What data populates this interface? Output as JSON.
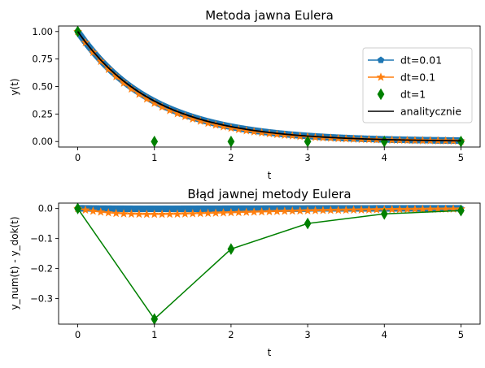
{
  "chart_data": [
    {
      "type": "line",
      "title": "Metoda jawna Eulera",
      "xlabel": "t",
      "ylabel": "y(t)",
      "xlim": [
        -0.25,
        5.25
      ],
      "ylim": [
        -0.05,
        1.05
      ],
      "xticks": [
        0,
        1,
        2,
        3,
        4,
        5
      ],
      "yticks": [
        0.0,
        0.25,
        0.5,
        0.75,
        1.0
      ],
      "ytick_labels": [
        "0.00",
        "0.25",
        "0.50",
        "0.75",
        "1.00"
      ],
      "grid": false,
      "legend_position": "right",
      "series": [
        {
          "name": "dt=0.01",
          "kind": "line-marker",
          "marker": "pentagon",
          "color": "#1f77b4",
          "function": "euler",
          "dt": 0.01
        },
        {
          "name": "dt=0.1",
          "kind": "line-marker",
          "marker": "star",
          "color": "#ff7f0e",
          "function": "euler",
          "dt": 0.1
        },
        {
          "name": "dt=1",
          "kind": "marker-only",
          "marker": "thin-diamond",
          "color": "#008000",
          "x": [
            0,
            1,
            2,
            3,
            4,
            5
          ],
          "values": [
            1,
            0,
            0,
            0,
            0,
            0
          ]
        },
        {
          "name": "analitycznie",
          "kind": "line",
          "color": "#000000",
          "function": "exp(-t)"
        }
      ]
    },
    {
      "type": "line",
      "title": "Błąd jawnej metody Eulera",
      "xlabel": "t",
      "ylabel": "y_num(t) - y_dok(t)",
      "xlim": [
        -0.25,
        5.25
      ],
      "ylim": [
        -0.385,
        0.018
      ],
      "xticks": [
        0,
        1,
        2,
        3,
        4,
        5
      ],
      "yticks": [
        0.0,
        -0.1,
        -0.2,
        -0.3
      ],
      "ytick_labels": [
        "0.0",
        "−0.1",
        "−0.2",
        "−0.3"
      ],
      "grid": false,
      "series": [
        {
          "name": "dt=0.01",
          "kind": "line-marker",
          "marker": "pentagon",
          "color": "#1f77b4",
          "function": "euler_error",
          "dt": 0.01
        },
        {
          "name": "dt=0.1",
          "kind": "line-marker",
          "marker": "star",
          "color": "#ff7f0e",
          "function": "euler_error",
          "dt": 0.1
        },
        {
          "name": "dt=1",
          "kind": "line-marker",
          "marker": "thin-diamond",
          "color": "#008000",
          "x": [
            0,
            1,
            2,
            3,
            4,
            5
          ],
          "values": [
            0,
            -0.368,
            -0.135,
            -0.05,
            -0.018,
            -0.007
          ]
        }
      ]
    }
  ]
}
